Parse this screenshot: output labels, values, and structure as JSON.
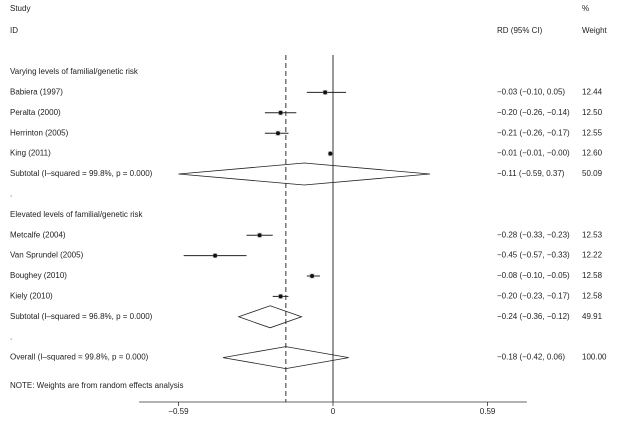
{
  "chart_data": {
    "type": "forest",
    "header_study": "Study",
    "header_id": "ID",
    "header_rd": "RD (95% CI)",
    "header_pct": "%",
    "header_weight": "Weight",
    "groups": [
      {
        "label": "Varying levels of familial/genetic risk",
        "studies": [
          {
            "name": "Babiera (1997)",
            "rd": -0.03,
            "lo": -0.1,
            "hi": 0.05,
            "ci_label": "−0.03 (−0.10, 0.05)",
            "weight": {
              "value": 12.44,
              "label": "12.44"
            }
          },
          {
            "name": "Peralta (2000)",
            "rd": -0.2,
            "lo": -0.26,
            "hi": -0.14,
            "ci_label": "−0.20 (−0.26, −0.14)",
            "weight": {
              "value": 12.5,
              "label": "12.50"
            }
          },
          {
            "name": "Herrinton (2005)",
            "rd": -0.21,
            "lo": -0.26,
            "hi": -0.17,
            "ci_label": "−0.21 (−0.26, −0.17)",
            "weight": {
              "value": 12.55,
              "label": "12.55"
            }
          },
          {
            "name": "King (2011)",
            "rd": -0.01,
            "lo": -0.01,
            "hi": 0.0,
            "ci_label": "−0.01 (−0.01, −0.00)",
            "weight": {
              "value": 12.6,
              "label": "12.60"
            }
          }
        ],
        "subtotal": {
          "name": "Subtotal  (I–squared = 99.8%, p = 0.000)",
          "rd": -0.11,
          "lo": -0.59,
          "hi": 0.37,
          "ci_label": "−0.11 (−0.59, 0.37)",
          "weight": {
            "value": 50.09,
            "label": "50.09"
          }
        },
        "spacer": "."
      },
      {
        "label": "Elevated levels of familial/genetic risk",
        "studies": [
          {
            "name": "Metcalfe (2004)",
            "rd": -0.28,
            "lo": -0.33,
            "hi": -0.23,
            "ci_label": "−0.28 (−0.33, −0.23)",
            "weight": {
              "value": 12.53,
              "label": "12.53"
            }
          },
          {
            "name": "Van Sprundel (2005)",
            "rd": -0.45,
            "lo": -0.57,
            "hi": -0.33,
            "ci_label": "−0.45 (−0.57, −0.33)",
            "weight": {
              "value": 12.22,
              "label": "12.22"
            }
          },
          {
            "name": "Boughey (2010)",
            "rd": -0.08,
            "lo": -0.1,
            "hi": -0.05,
            "ci_label": "−0.08 (−0.10, −0.05)",
            "weight": {
              "value": 12.58,
              "label": "12.58"
            }
          },
          {
            "name": "Kiely (2010)",
            "rd": -0.2,
            "lo": -0.23,
            "hi": -0.17,
            "ci_label": "−0.20 (−0.23, −0.17)",
            "weight": {
              "value": 12.58,
              "label": "12.58"
            }
          }
        ],
        "subtotal": {
          "name": "Subtotal  (I–squared = 96.8%, p = 0.000)",
          "rd": -0.24,
          "lo": -0.36,
          "hi": -0.12,
          "ci_label": "−0.24 (−0.36, −0.12)",
          "weight": {
            "value": 49.91,
            "label": "49.91"
          }
        },
        "spacer": "."
      }
    ],
    "overall": {
      "name": "Overall  (I–squared = 99.8%, p = 0.000)",
      "rd": -0.18,
      "lo": -0.42,
      "hi": 0.06,
      "ci_label": "−0.18 (−0.42, 0.06)",
      "weight": {
        "value": 100,
        "label": "100.00"
      }
    },
    "note": "NOTE: Weights are from random effects analysis",
    "xlim": [
      -0.74,
      0.74
    ],
    "xticks": [
      {
        "value": -0.59,
        "label": "−0.59"
      },
      0,
      0.59
    ]
  }
}
